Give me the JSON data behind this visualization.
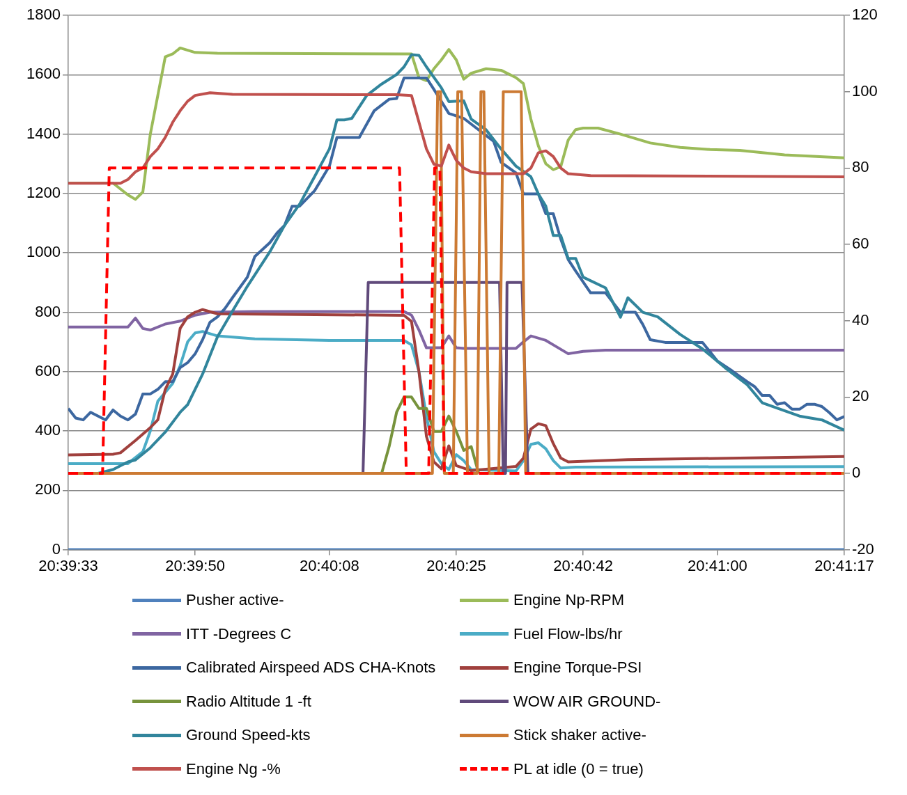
{
  "chart_data": {
    "type": "line",
    "xlim": [
      20.659167,
      20.688056
    ],
    "xticks": [
      {
        "value": 20.659167,
        "label": "20:39:33"
      },
      {
        "value": 20.663889,
        "label": "20:39:50"
      },
      {
        "value": 20.668889,
        "label": "20:40:08"
      },
      {
        "value": 20.673611,
        "label": "20:40:25"
      },
      {
        "value": 20.678333,
        "label": "20:40:42"
      },
      {
        "value": 20.683333,
        "label": "20:41:00"
      },
      {
        "value": 20.688056,
        "label": "20:41:17"
      }
    ],
    "ylim": [
      0,
      1800
    ],
    "yticks": [
      0,
      200,
      400,
      600,
      800,
      1000,
      1200,
      1400,
      1600,
      1800
    ],
    "y2lim": [
      -20,
      120
    ],
    "y2ticks": [
      -20,
      0,
      20,
      40,
      60,
      80,
      100,
      120
    ],
    "grid": "y",
    "legend": "bottom",
    "marker": "none",
    "series": [
      {
        "name": "Pusher active-",
        "color": "#4f81bd",
        "x": [
          20.659167,
          20.688056
        ],
        "values": [
          0,
          0
        ]
      },
      {
        "name": "Engine Np-RPM",
        "color": "#9bbb59",
        "x": [
          20.659167,
          20.660833,
          20.661389,
          20.661667,
          20.661944,
          20.662222,
          20.6625,
          20.662778,
          20.663056,
          20.663333,
          20.663889,
          20.664722,
          20.671944,
          20.672222,
          20.6725,
          20.672778,
          20.673056,
          20.673333,
          20.673611,
          20.673889,
          20.674167,
          20.674722,
          20.675278,
          20.675833,
          20.676111,
          20.676389,
          20.676667,
          20.676944,
          20.677222,
          20.6775,
          20.677778,
          20.678056,
          20.678333,
          20.678889,
          20.679722,
          20.680833,
          20.681944,
          20.683056,
          20.684167,
          20.685833,
          20.688056
        ],
        "values": [
          1235,
          1235,
          1195,
          1180,
          1205,
          1400,
          1530,
          1660,
          1670,
          1690,
          1675,
          1672,
          1670,
          1590,
          1580,
          1620,
          1650,
          1685,
          1650,
          1585,
          1605,
          1620,
          1615,
          1590,
          1570,
          1450,
          1360,
          1300,
          1280,
          1290,
          1380,
          1415,
          1420,
          1420,
          1400,
          1370,
          1355,
          1348,
          1345,
          1330,
          1320
        ]
      },
      {
        "name": "ITT -Degrees C",
        "color": "#8064a2",
        "x": [
          20.659167,
          20.661389,
          20.661667,
          20.661944,
          20.662222,
          20.662778,
          20.663333,
          20.663889,
          20.664444,
          20.666111,
          20.671667,
          20.671944,
          20.672222,
          20.6725,
          20.673056,
          20.673333,
          20.673611,
          20.673889,
          20.675833,
          20.676111,
          20.676389,
          20.676944,
          20.677222,
          20.677778,
          20.678333,
          20.679167,
          20.688056
        ],
        "values": [
          750,
          750,
          780,
          745,
          740,
          760,
          770,
          790,
          800,
          802,
          802,
          790,
          740,
          680,
          680,
          720,
          680,
          678,
          678,
          700,
          720,
          705,
          690,
          660,
          668,
          672,
          672
        ]
      },
      {
        "name": "Fuel Flow-lbs/hr",
        "color": "#4bacc6",
        "x": [
          20.659167,
          20.661389,
          20.661944,
          20.662222,
          20.6625,
          20.663056,
          20.663333,
          20.663611,
          20.663889,
          20.664167,
          20.664722,
          20.666111,
          20.668889,
          20.671667,
          20.671944,
          20.672222,
          20.6725,
          20.672778,
          20.673056,
          20.673333,
          20.673611,
          20.673889,
          20.674167,
          20.675833,
          20.676111,
          20.676389,
          20.676667,
          20.676944,
          20.677222,
          20.6775,
          20.678056,
          20.688056
        ],
        "values": [
          290,
          290,
          330,
          400,
          500,
          560,
          620,
          700,
          730,
          735,
          720,
          710,
          705,
          705,
          690,
          600,
          450,
          330,
          290,
          270,
          320,
          300,
          270,
          265,
          300,
          355,
          360,
          340,
          300,
          275,
          278,
          280
        ]
      },
      {
        "name": "Calibrated Airspeed ADS CHA-Knots",
        "color": "#3c67a0",
        "axis": "y2",
        "x": [
          20.659167,
          20.659444,
          20.659722,
          20.66,
          20.660278,
          20.660556,
          20.660833,
          20.661111,
          20.661389,
          20.661667,
          20.661944,
          20.662222,
          20.6625,
          20.662778,
          20.663056,
          20.663333,
          20.663611,
          20.663889,
          20.664167,
          20.664444,
          20.664722,
          20.665,
          20.665278,
          20.665833,
          20.666111,
          20.666667,
          20.666944,
          20.667222,
          20.6675,
          20.667778,
          20.668056,
          20.668333,
          20.668889,
          20.669167,
          20.67,
          20.670556,
          20.671111,
          20.671389,
          20.671667,
          20.6725,
          20.672778,
          20.673333,
          20.673889,
          20.674444,
          20.675,
          20.675278,
          20.675833,
          20.676111,
          20.676667,
          20.676944,
          20.677222,
          20.6775,
          20.677778,
          20.678056,
          20.678611,
          20.679167,
          20.679722,
          20.680278,
          20.680556,
          20.680833,
          20.681389,
          20.682778,
          20.683333,
          20.683889,
          20.684444,
          20.684722,
          20.685,
          20.685278,
          20.685556,
          20.685833,
          20.686111,
          20.686389,
          20.686667,
          20.686944,
          20.687222,
          20.6875,
          20.687778,
          20.688056
        ],
        "values": [
          17,
          14.5,
          14,
          16,
          15,
          14,
          16.6,
          15,
          14,
          15.5,
          20.8,
          20.8,
          22,
          24,
          24,
          27.7,
          29,
          31.3,
          35,
          39.6,
          41,
          43.2,
          46,
          51.4,
          56.8,
          60.4,
          63,
          65,
          70,
          70,
          72,
          74,
          80.5,
          88,
          88,
          95,
          98,
          98.2,
          103.6,
          103.6,
          100.6,
          94.3,
          93,
          90,
          87,
          81.5,
          78.7,
          73.2,
          73.2,
          68,
          68,
          61.4,
          56,
          53,
          47.3,
          47.3,
          42.2,
          42.2,
          39,
          35,
          34.3,
          34.3,
          29.4,
          26.8,
          24,
          22.7,
          20.4,
          20.4,
          18.1,
          18.5,
          16.8,
          16.8,
          18.1,
          18.1,
          17.5,
          15.9,
          14,
          14.9
        ]
      },
      {
        "name": "Engine Torque-PSI",
        "color": "#a0403d",
        "axis": "y2",
        "x": [
          20.659167,
          20.660833,
          20.661111,
          20.661667,
          20.662222,
          20.6625,
          20.662778,
          20.663056,
          20.663333,
          20.663611,
          20.663889,
          20.664167,
          20.664722,
          20.671667,
          20.671944,
          20.672222,
          20.6725,
          20.672778,
          20.673056,
          20.673333,
          20.673611,
          20.674167,
          20.675833,
          20.676111,
          20.676389,
          20.676667,
          20.676944,
          20.677222,
          20.6775,
          20.677778,
          20.68,
          20.684167,
          20.688056
        ],
        "values": [
          4.8,
          5,
          5.4,
          8.6,
          12,
          14,
          22,
          26,
          38,
          41,
          42.2,
          42.9,
          41.8,
          41.4,
          39.8,
          26.6,
          9.7,
          3,
          1.2,
          7.2,
          2,
          0.7,
          1.8,
          4,
          11.6,
          13,
          12.5,
          7.8,
          4,
          3,
          3.6,
          4,
          4.4
        ]
      },
      {
        "name": "Radio Altitude 1 -ft",
        "color": "#77933c",
        "axis": "y2",
        "x": [
          20.670833,
          20.671111,
          20.671389,
          20.671667,
          20.671944,
          20.672222,
          20.6725,
          20.672778,
          20.673056,
          20.673333,
          20.673611,
          20.673889,
          20.674167,
          20.674444
        ],
        "values": [
          0,
          7,
          16,
          20,
          20,
          17,
          17,
          11,
          11,
          15,
          11,
          6,
          7,
          0
        ]
      },
      {
        "name": "WOW AIR GROUND-",
        "color": "#604a7b",
        "axis": "y2",
        "x": [
          20.659167,
          20.670139,
          20.670333,
          20.675222,
          20.675361,
          20.675444,
          20.6755,
          20.676056,
          20.676278,
          20.688056
        ],
        "values": [
          0,
          0,
          50,
          50,
          0,
          0,
          50,
          50,
          0,
          0
        ]
      },
      {
        "name": "Ground Speed-kts",
        "color": "#31859c",
        "axis": "y2",
        "x": [
          20.659167,
          20.660278,
          20.660833,
          20.661389,
          20.661667,
          20.662222,
          20.662778,
          20.663333,
          20.663611,
          20.664167,
          20.664722,
          20.665278,
          20.665833,
          20.666389,
          20.666667,
          20.667222,
          20.667778,
          20.668333,
          20.668889,
          20.669167,
          20.669444,
          20.669722,
          20.670278,
          20.670833,
          20.671389,
          20.671667,
          20.671944,
          20.672222,
          20.6725,
          20.673056,
          20.673333,
          20.673889,
          20.674167,
          20.674722,
          20.675278,
          20.675833,
          20.676389,
          20.676667,
          20.676944,
          20.677222,
          20.6775,
          20.677778,
          20.678056,
          20.678333,
          20.679167,
          20.679722,
          20.68,
          20.680556,
          20.681111,
          20.681944,
          20.682778,
          20.683611,
          20.684444,
          20.685,
          20.686389,
          20.687222,
          20.688056
        ],
        "values": [
          0,
          0,
          1,
          3,
          3.5,
          6.7,
          10.8,
          16,
          18,
          26,
          35.8,
          42.5,
          49,
          55,
          58,
          65,
          70.5,
          77.7,
          85,
          92.6,
          92.6,
          93,
          99,
          102,
          104.5,
          106.5,
          109.7,
          109.5,
          106.5,
          101,
          97.4,
          97.6,
          92.8,
          90,
          85,
          80.5,
          77.7,
          73.2,
          70,
          62.3,
          62.3,
          56.3,
          56.3,
          51.4,
          48.6,
          40.9,
          46,
          42.2,
          41,
          36.4,
          32.6,
          27.7,
          23.2,
          18.5,
          15,
          14,
          11.3
        ]
      },
      {
        "name": "Stick shaker active-",
        "color": "#cc7a33",
        "axis": "y2",
        "x": [
          20.659167,
          20.672722,
          20.672917,
          20.673028,
          20.673167,
          20.6735,
          20.673667,
          20.673806,
          20.674028,
          20.674389,
          20.674528,
          20.674639,
          20.674833,
          20.675194,
          20.675361,
          20.676028,
          20.676194,
          20.688056
        ],
        "values": [
          0,
          0,
          100,
          100,
          0,
          0,
          100,
          100,
          0,
          0,
          100,
          100,
          0,
          0,
          100,
          100,
          0,
          0
        ]
      },
      {
        "name": "Engine Ng -%",
        "color": "#c0504d",
        "axis": "y2",
        "x": [
          20.659167,
          20.661111,
          20.661389,
          20.661667,
          20.661944,
          20.662222,
          20.6625,
          20.662778,
          20.663056,
          20.663333,
          20.663611,
          20.663889,
          20.664444,
          20.665278,
          20.671389,
          20.671944,
          20.672222,
          20.6725,
          20.672778,
          20.673056,
          20.673333,
          20.673611,
          20.673889,
          20.674167,
          20.674722,
          20.676111,
          20.676389,
          20.676667,
          20.676944,
          20.677222,
          20.6775,
          20.677778,
          20.678611,
          20.688056
        ],
        "values": [
          76,
          76,
          77,
          79,
          80,
          83,
          85,
          88,
          92,
          95,
          97.5,
          99,
          99.7,
          99.3,
          99.2,
          99,
          92,
          85,
          81,
          80.5,
          86,
          82,
          80,
          79,
          78.5,
          78.5,
          80,
          84,
          84.5,
          83,
          80,
          78.5,
          78,
          77.7
        ]
      },
      {
        "name": "PL at idle (0 = true)",
        "color": "#ff0000",
        "axis": "y2",
        "line_style": "dashed",
        "x": [
          20.659167,
          20.660444,
          20.660694,
          20.6715,
          20.67175,
          20.672583,
          20.672806,
          20.673,
          20.673167,
          20.688056
        ],
        "values": [
          0,
          0,
          80,
          80,
          0,
          0,
          80,
          80,
          0,
          0
        ]
      }
    ]
  }
}
